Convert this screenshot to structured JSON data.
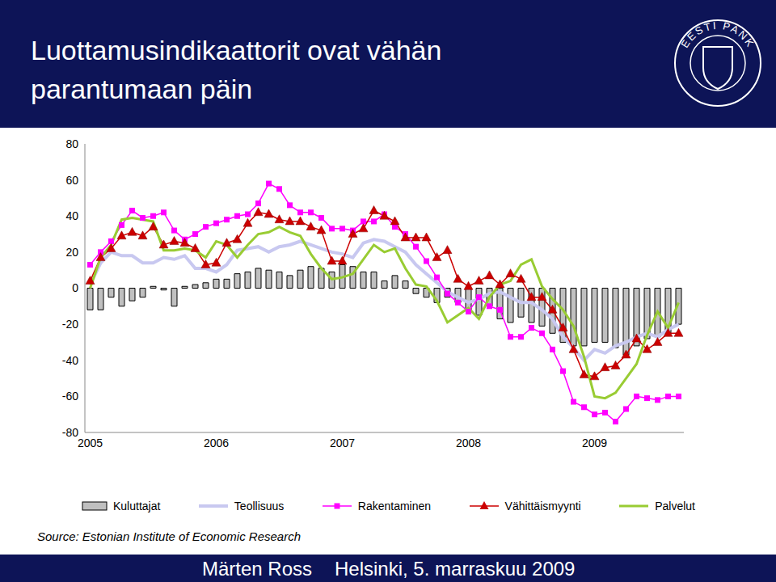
{
  "chart_data": {
    "type": "line",
    "title": "Luottamusindikaattorit ovat vähän parantumaan päin",
    "source": "Source: Estonian Institute of Economic Research",
    "categories": [
      "2005",
      null,
      null,
      null,
      null,
      null,
      null,
      null,
      null,
      null,
      null,
      null,
      "2006",
      null,
      null,
      null,
      null,
      null,
      null,
      null,
      null,
      null,
      null,
      null,
      "2007",
      null,
      null,
      null,
      null,
      null,
      null,
      null,
      null,
      null,
      null,
      null,
      "2008",
      null,
      null,
      null,
      null,
      null,
      null,
      null,
      null,
      null,
      null,
      null,
      "2009",
      null,
      null,
      null,
      null,
      null,
      null,
      null,
      null
    ],
    "series": [
      {
        "name": "Kuluttajat",
        "type": "bar",
        "color": "#c0c0c0",
        "values": [
          -12,
          -12,
          -5,
          -10,
          -7,
          -5,
          1,
          -1,
          -10,
          1,
          2,
          3,
          5,
          5,
          8,
          9,
          11,
          10,
          9,
          7,
          10,
          12,
          11,
          9,
          13,
          12,
          9,
          9,
          4,
          7,
          4,
          -3,
          -5,
          -8,
          -5,
          -8,
          -12,
          -15,
          -10,
          -17,
          -19,
          -16,
          -19,
          -21,
          -25,
          -30,
          -32,
          -32,
          -30,
          -30,
          -33,
          -37,
          -32,
          -28,
          -27,
          -25,
          -20
        ]
      },
      {
        "name": "Teollisuus",
        "type": "line",
        "color": "#c8c8f0",
        "marker": "none",
        "line_style": "solid",
        "values": [
          2,
          14,
          20,
          18,
          18,
          14,
          14,
          17,
          16,
          18,
          11,
          11,
          9,
          13,
          21,
          22,
          23,
          20,
          23,
          24,
          26,
          24,
          22,
          20,
          19,
          17,
          25,
          27,
          26,
          23,
          20,
          13,
          8,
          3,
          -2,
          -5,
          -8,
          -6,
          -3,
          -2,
          -5,
          -8,
          -8,
          -12,
          -17,
          -27,
          -33,
          -40,
          -34,
          -36,
          -32,
          -30,
          -27,
          -25,
          -27,
          -23,
          -20
        ]
      },
      {
        "name": "Rakentaminen",
        "type": "line",
        "color": "#ff00ff",
        "marker": "square",
        "line_style": "solid",
        "values": [
          13,
          20,
          26,
          35,
          43,
          39,
          40,
          42,
          32,
          27,
          30,
          34,
          36,
          38,
          40,
          41,
          47,
          58,
          55,
          46,
          42,
          42,
          39,
          33,
          33,
          32,
          37,
          37,
          41,
          34,
          30,
          23,
          15,
          6,
          -3,
          -8,
          -13,
          -5,
          -10,
          -12,
          -27,
          -27,
          -22,
          -25,
          -34,
          -46,
          -63,
          -66,
          -70,
          -69,
          -74,
          -67,
          -60,
          -61,
          -62,
          -60,
          -60
        ]
      },
      {
        "name": "Vähittäismyynti",
        "type": "line",
        "color": "#cc0000",
        "marker": "triangle",
        "line_style": "solid",
        "values": [
          4,
          17,
          22,
          29,
          31,
          29,
          34,
          24,
          26,
          25,
          22,
          13,
          14,
          25,
          27,
          36,
          42,
          41,
          38,
          37,
          37,
          34,
          32,
          15,
          15,
          30,
          33,
          43,
          40,
          37,
          28,
          28,
          28,
          17,
          21,
          5,
          1,
          4,
          7,
          2,
          8,
          5,
          -5,
          -5,
          -12,
          -22,
          -34,
          -48,
          -49,
          -44,
          -43,
          -37,
          -28,
          -34,
          -30,
          -25,
          -25
        ]
      },
      {
        "name": "Palvelut",
        "type": "line",
        "color": "#99cc33",
        "marker": "none",
        "line_style": "solid",
        "values": [
          0,
          17,
          24,
          38,
          39,
          38,
          37,
          21,
          21,
          22,
          21,
          17,
          26,
          24,
          17,
          24,
          30,
          31,
          34,
          31,
          29,
          19,
          11,
          5,
          6,
          8,
          16,
          24,
          20,
          22,
          11,
          2,
          1,
          -7,
          -19,
          -15,
          -11,
          -17,
          -5,
          2,
          4,
          13,
          16,
          1,
          -6,
          -12,
          -21,
          -38,
          -60,
          -61,
          -58,
          -50,
          -42,
          -26,
          -13,
          -22,
          -8
        ]
      }
    ],
    "ylim": [
      -80,
      80
    ],
    "yticks": [
      -80,
      -60,
      -40,
      -20,
      0,
      20,
      40,
      60,
      80
    ],
    "grid": false,
    "legend": "bottom"
  },
  "logo": "EESTI PANK",
  "footer": [
    "Märten Ross",
    "Helsinki, 5. marraskuu 2009"
  ]
}
